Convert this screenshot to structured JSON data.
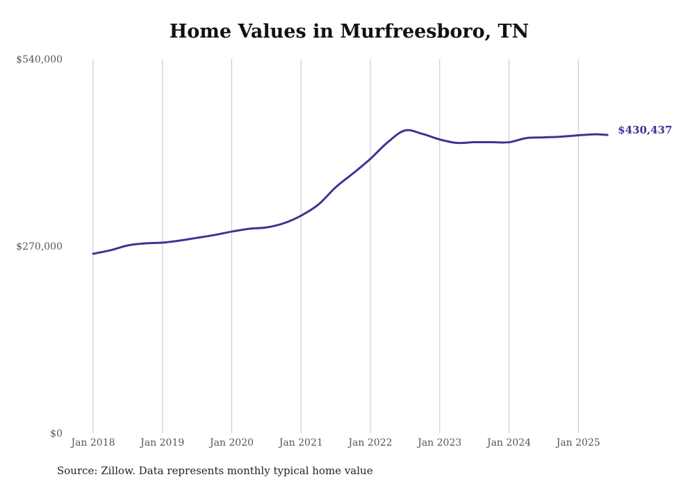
{
  "chart_data": {
    "type": "line",
    "title": "Home Values in Murfreesboro, TN",
    "xlabel": "",
    "ylabel": "",
    "ylim": [
      0,
      540000
    ],
    "yticks": [
      0,
      270000,
      540000
    ],
    "ytick_labels": [
      "$0",
      "$270,000",
      "$540,000"
    ],
    "xticks": [
      2018,
      2019,
      2020,
      2021,
      2022,
      2023,
      2024,
      2025
    ],
    "xtick_labels": [
      "Jan 2018",
      "Jan 2019",
      "Jan 2020",
      "Jan 2021",
      "Jan 2022",
      "Jan 2023",
      "Jan 2024",
      "Jan 2025"
    ],
    "xlim": [
      2018,
      2025.5
    ],
    "grid": "vertical",
    "series": [
      {
        "name": "Typical home value",
        "color": "#3b3494",
        "x": [
          2018.0,
          2018.25,
          2018.5,
          2018.75,
          2019.0,
          2019.25,
          2019.5,
          2019.75,
          2020.0,
          2020.25,
          2020.5,
          2020.75,
          2021.0,
          2021.25,
          2021.5,
          2021.75,
          2022.0,
          2022.25,
          2022.5,
          2022.75,
          2023.0,
          2023.25,
          2023.5,
          2023.75,
          2024.0,
          2024.25,
          2024.5,
          2024.75,
          2025.0,
          2025.25,
          2025.42
        ],
        "values": [
          259000,
          264000,
          271000,
          274000,
          275000,
          278000,
          282000,
          286000,
          291000,
          295000,
          297000,
          303000,
          314000,
          330000,
          355000,
          375000,
          396000,
          420000,
          437000,
          432000,
          424000,
          419000,
          420000,
          420000,
          420000,
          426000,
          427000,
          428000,
          430000,
          431500,
          430437
        ]
      }
    ],
    "end_label": "$430,437"
  },
  "source": "Source: Zillow. Data represents monthly typical home value"
}
